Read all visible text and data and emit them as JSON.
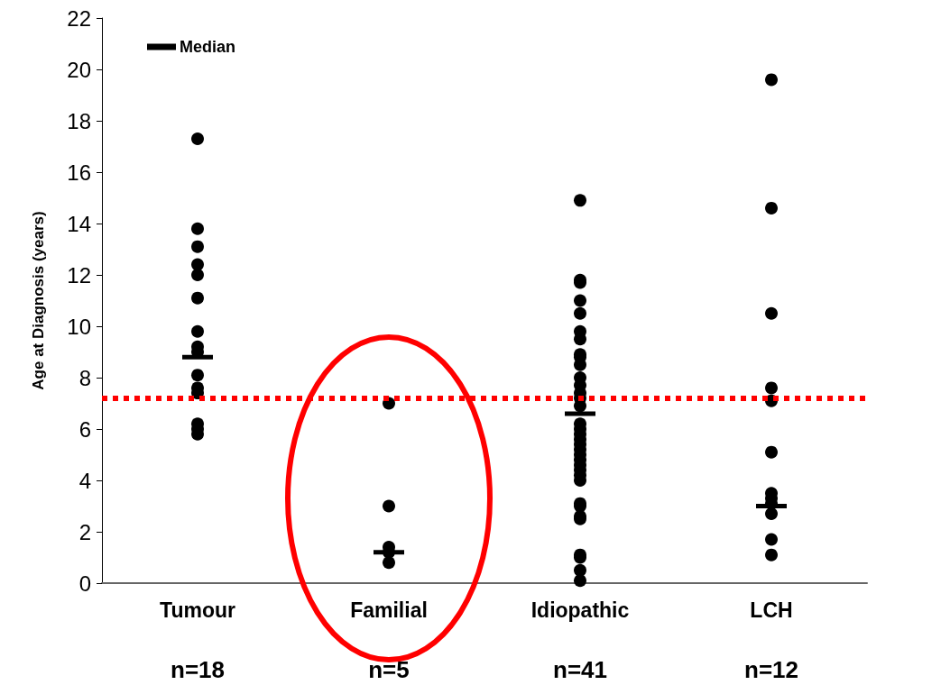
{
  "chart_data": {
    "type": "scatter",
    "ylabel": "Age at Diagnosis (years)",
    "categories": [
      "Tumour",
      "Familial",
      "Idiopathic",
      "LCH"
    ],
    "ylim": [
      0,
      22
    ],
    "yticks": [
      0,
      2,
      4,
      6,
      8,
      10,
      12,
      14,
      16,
      18,
      20,
      22
    ],
    "grid": false,
    "legend": "top left",
    "series": [
      {
        "type": "scatter",
        "marker": "circle",
        "color": "#000000",
        "x": [
          "Tumour",
          "Tumour",
          "Tumour",
          "Tumour",
          "Tumour",
          "Tumour",
          "Tumour",
          "Tumour",
          "Tumour",
          "Tumour",
          "Tumour",
          "Tumour",
          "Tumour",
          "Tumour",
          "Tumour",
          "Familial",
          "Familial",
          "Familial",
          "Familial",
          "Familial",
          "Idiopathic",
          "Idiopathic",
          "Idiopathic",
          "Idiopathic",
          "Idiopathic",
          "Idiopathic",
          "Idiopathic",
          "Idiopathic",
          "Idiopathic",
          "Idiopathic",
          "Idiopathic",
          "Idiopathic",
          "Idiopathic",
          "Idiopathic",
          "Idiopathic",
          "Idiopathic",
          "Idiopathic",
          "Idiopathic",
          "Idiopathic",
          "Idiopathic",
          "Idiopathic",
          "Idiopathic",
          "Idiopathic",
          "Idiopathic",
          "Idiopathic",
          "Idiopathic",
          "Idiopathic",
          "Idiopathic",
          "Idiopathic",
          "Idiopathic",
          "Idiopathic",
          "Idiopathic",
          "Idiopathic",
          "Idiopathic",
          "Idiopathic",
          "LCH",
          "LCH",
          "LCH",
          "LCH",
          "LCH",
          "LCH",
          "LCH",
          "LCH",
          "LCH",
          "LCH",
          "LCH",
          "LCH"
        ],
        "values": [
          17.3,
          13.8,
          13.1,
          12.4,
          12.0,
          11.1,
          9.8,
          9.2,
          9.0,
          8.1,
          7.6,
          7.4,
          6.2,
          6.0,
          5.8,
          7.0,
          3.0,
          1.4,
          1.2,
          0.8,
          14.9,
          11.8,
          11.7,
          11.0,
          10.5,
          9.8,
          9.5,
          8.9,
          8.8,
          8.5,
          8.0,
          7.7,
          7.4,
          7.2,
          6.9,
          6.2,
          6.0,
          5.8,
          5.6,
          5.4,
          5.2,
          5.0,
          4.8,
          4.6,
          4.4,
          4.2,
          4.0,
          3.1,
          3.0,
          2.6,
          2.5,
          1.1,
          1.0,
          0.5,
          0.1,
          19.6,
          14.6,
          10.5,
          7.6,
          7.1,
          5.1,
          3.5,
          3.3,
          3.1,
          2.7,
          1.7,
          1.1
        ]
      },
      {
        "type": "box",
        "name": "Median",
        "color": "#000000",
        "boxes": [
          {
            "low": 8.8,
            "q1": 8.8,
            "median": 8.8,
            "q3": 8.8,
            "high": 8.8
          },
          {
            "low": 1.2,
            "q1": 1.2,
            "median": 1.2,
            "q3": 1.2,
            "high": 1.2
          },
          {
            "low": 6.6,
            "q1": 6.6,
            "median": 6.6,
            "q3": 6.6,
            "high": 6.6
          },
          {
            "low": 3.0,
            "q1": 3.0,
            "median": 3.0,
            "q3": 3.0,
            "high": 3.0
          }
        ]
      }
    ],
    "ref_lines": [
      {
        "axis": "y",
        "value": 7.2,
        "color": "#ff0000",
        "line_style": "dotted"
      }
    ],
    "annotations": [
      "n=18",
      "n=5",
      "n=41",
      "n=12"
    ]
  }
}
